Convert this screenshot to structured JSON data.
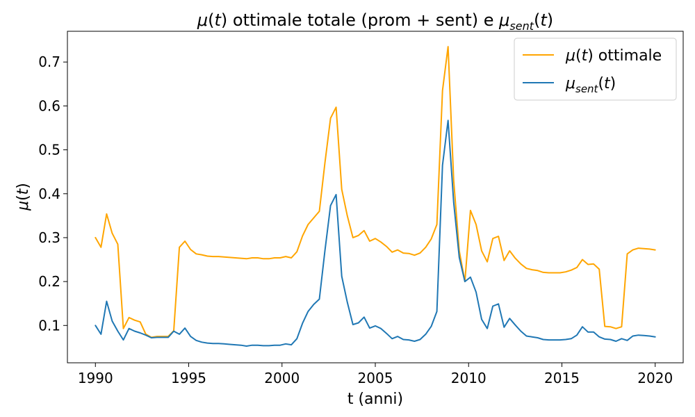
{
  "chart_data": {
    "type": "line",
    "title": "μ(t) ottimale totale (prom + sent) e μsent(t)",
    "xlabel": "t (anni)",
    "ylabel": "μ(t)",
    "xlim": [
      1988.5,
      2021.5
    ],
    "ylim": [
      0.015,
      0.77
    ],
    "xticks": [
      1990,
      1995,
      2000,
      2005,
      2010,
      2015,
      2020
    ],
    "yticks": [
      0.1,
      0.2,
      0.3,
      0.4,
      0.5,
      0.6,
      0.7
    ],
    "grid": false,
    "legend_position": "top-right",
    "x": [
      1990,
      1990.3,
      1990.6,
      1990.9,
      1991.2,
      1991.5,
      1991.8,
      1992.1,
      1992.4,
      1992.7,
      1993,
      1993.3,
      1993.6,
      1993.9,
      1994.2,
      1994.5,
      1994.8,
      1995.1,
      1995.4,
      1995.7,
      1996,
      1996.3,
      1996.6,
      1996.9,
      1997.2,
      1997.5,
      1997.8,
      1998.1,
      1998.4,
      1998.7,
      1999,
      1999.3,
      1999.6,
      1999.9,
      2000.2,
      2000.5,
      2000.8,
      2001.1,
      2001.4,
      2001.7,
      2002,
      2002.3,
      2002.6,
      2002.9,
      2003.2,
      2003.5,
      2003.8,
      2004.1,
      2004.4,
      2004.7,
      2005,
      2005.3,
      2005.6,
      2005.9,
      2006.2,
      2006.5,
      2006.8,
      2007.1,
      2007.4,
      2007.7,
      2008,
      2008.3,
      2008.6,
      2008.9,
      2009.2,
      2009.5,
      2009.8,
      2010.1,
      2010.4,
      2010.7,
      2011,
      2011.3,
      2011.6,
      2011.9,
      2012.2,
      2012.5,
      2012.8,
      2013.1,
      2013.4,
      2013.7,
      2014,
      2014.3,
      2014.6,
      2014.9,
      2015.2,
      2015.5,
      2015.8,
      2016.1,
      2016.4,
      2016.7,
      2017,
      2017.3,
      2017.6,
      2017.9,
      2018.2,
      2018.5,
      2018.8,
      2019.1,
      2019.4,
      2019.7,
      2020
    ],
    "series": [
      {
        "name": "μ(t) ottimale",
        "color": "#ffa500",
        "values": [
          0.3,
          0.278,
          0.354,
          0.31,
          0.285,
          0.093,
          0.118,
          0.112,
          0.108,
          0.08,
          0.073,
          0.075,
          0.075,
          0.075,
          0.088,
          0.278,
          0.292,
          0.273,
          0.263,
          0.261,
          0.258,
          0.257,
          0.257,
          0.256,
          0.255,
          0.254,
          0.253,
          0.252,
          0.254,
          0.254,
          0.252,
          0.252,
          0.254,
          0.254,
          0.257,
          0.254,
          0.268,
          0.304,
          0.33,
          0.345,
          0.36,
          0.47,
          0.572,
          0.597,
          0.41,
          0.35,
          0.3,
          0.305,
          0.316,
          0.292,
          0.298,
          0.29,
          0.28,
          0.267,
          0.272,
          0.265,
          0.264,
          0.26,
          0.265,
          0.278,
          0.297,
          0.33,
          0.635,
          0.735,
          0.43,
          0.27,
          0.2,
          0.362,
          0.33,
          0.27,
          0.245,
          0.298,
          0.303,
          0.248,
          0.27,
          0.253,
          0.24,
          0.23,
          0.227,
          0.225,
          0.221,
          0.22,
          0.22,
          0.22,
          0.222,
          0.226,
          0.232,
          0.25,
          0.239,
          0.24,
          0.228,
          0.098,
          0.097,
          0.093,
          0.097,
          0.263,
          0.272,
          0.276,
          0.275,
          0.274,
          0.272
        ]
      },
      {
        "name": "μsent(t)",
        "color": "#1f77b4",
        "values": [
          0.1,
          0.08,
          0.155,
          0.11,
          0.087,
          0.067,
          0.093,
          0.087,
          0.083,
          0.078,
          0.072,
          0.073,
          0.073,
          0.073,
          0.087,
          0.08,
          0.094,
          0.075,
          0.066,
          0.062,
          0.06,
          0.059,
          0.059,
          0.058,
          0.057,
          0.056,
          0.055,
          0.053,
          0.055,
          0.055,
          0.054,
          0.054,
          0.055,
          0.055,
          0.058,
          0.056,
          0.07,
          0.105,
          0.132,
          0.148,
          0.16,
          0.27,
          0.373,
          0.398,
          0.212,
          0.153,
          0.102,
          0.106,
          0.119,
          0.094,
          0.099,
          0.093,
          0.082,
          0.07,
          0.075,
          0.068,
          0.067,
          0.064,
          0.068,
          0.08,
          0.098,
          0.132,
          0.465,
          0.567,
          0.38,
          0.255,
          0.2,
          0.21,
          0.176,
          0.114,
          0.093,
          0.144,
          0.149,
          0.096,
          0.116,
          0.101,
          0.087,
          0.076,
          0.074,
          0.072,
          0.068,
          0.067,
          0.067,
          0.067,
          0.068,
          0.07,
          0.078,
          0.097,
          0.085,
          0.085,
          0.074,
          0.069,
          0.068,
          0.064,
          0.07,
          0.066,
          0.076,
          0.078,
          0.077,
          0.076,
          0.074
        ]
      }
    ]
  }
}
